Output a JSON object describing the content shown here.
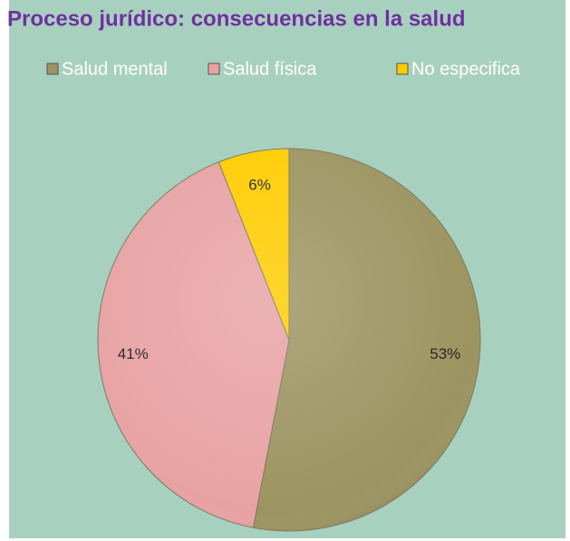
{
  "chart_data": {
    "type": "pie",
    "title": "Proceso jurídico: consecuencias en la salud",
    "categories": [
      "Salud mental",
      "Salud física",
      "No especifica"
    ],
    "values": [
      53,
      41,
      6
    ],
    "value_labels": [
      "53%",
      "41%",
      "6%"
    ],
    "colors": [
      "#9c9460",
      "#e8a2a3",
      "#ffcc00"
    ],
    "legend": "top"
  }
}
